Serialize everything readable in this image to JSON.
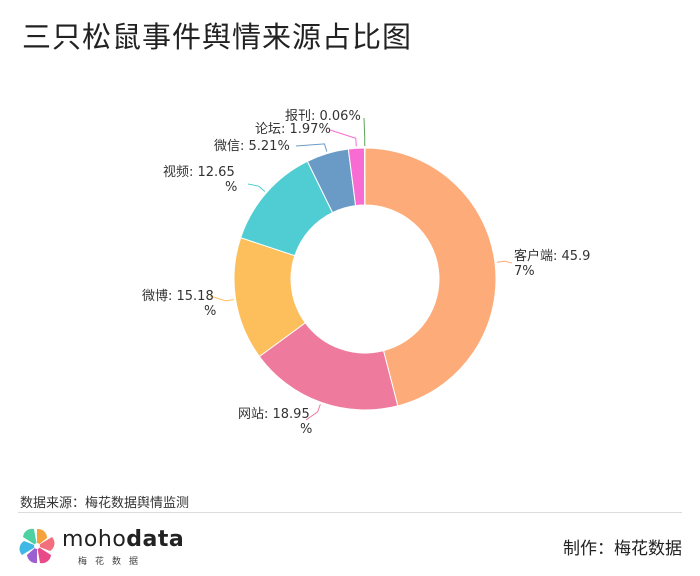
{
  "title": "三只松鼠事件舆情来源占比图",
  "source_text": "数据来源：梅花数据舆情监测",
  "maker_text": "制作：梅花数据",
  "brand": {
    "word_light": "moho",
    "word_bold": "data",
    "sub": "梅花数据"
  },
  "chart_data": {
    "type": "pie",
    "variant": "donut",
    "categories": [
      "客户端",
      "网站",
      "微博",
      "视频",
      "微信",
      "论坛",
      "报刊"
    ],
    "values": [
      45.97,
      18.95,
      15.18,
      12.65,
      5.21,
      1.97,
      0.06
    ],
    "unit": "%",
    "labels": [
      [
        "客户端: 45.9",
        "7%"
      ],
      [
        "网站: 18.95",
        "%"
      ],
      [
        "微博: 15.18",
        "%"
      ],
      [
        "视频: 12.65",
        "%"
      ],
      [
        "微信: 5.21%"
      ],
      [
        "论坛: 1.97%"
      ],
      [
        "报刊: 0.06%"
      ]
    ],
    "colors": [
      "#FDAB79",
      "#EE7B9D",
      "#FDBE5C",
      "#4FCDD2",
      "#6A9BC7",
      "#F86BD2",
      "#5BA45B"
    ],
    "start_angle": "top (12 o'clock)",
    "direction": "clockwise"
  }
}
